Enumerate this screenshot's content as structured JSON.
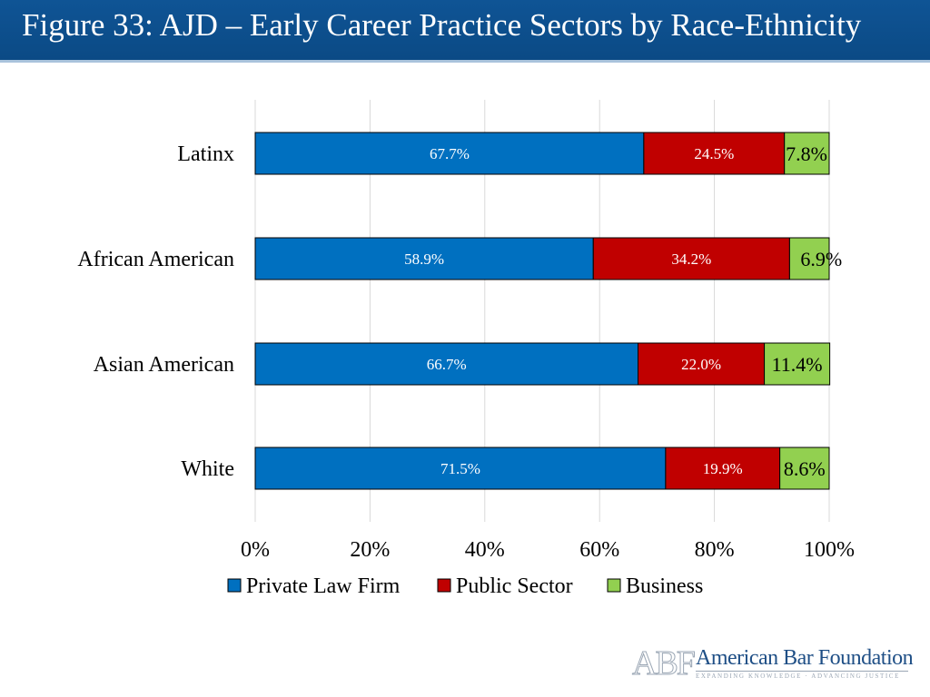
{
  "slide": {
    "title": "Figure 33: AJD – Early Career Practice Sectors by Race-Ethnicity",
    "title_bar_color": "#0f5495"
  },
  "chart_data": {
    "type": "bar",
    "orientation": "horizontal",
    "stacked": true,
    "categories": [
      "Latinx",
      "African American",
      "Asian American",
      "White"
    ],
    "series": [
      {
        "name": "Private Law Firm",
        "color": "#0070c0",
        "values": [
          67.7,
          58.9,
          66.7,
          71.5
        ]
      },
      {
        "name": "Public Sector",
        "color": "#c00000",
        "values": [
          24.5,
          34.2,
          22.0,
          19.9
        ]
      },
      {
        "name": "Business",
        "color": "#92d050",
        "values": [
          7.8,
          6.9,
          11.4,
          8.6
        ]
      }
    ],
    "data_labels": [
      [
        "67.7%",
        "24.5%",
        "7.8%"
      ],
      [
        "58.9%",
        "34.2%",
        "6.9%"
      ],
      [
        "66.7%",
        "22.0%",
        "11.4%"
      ],
      [
        "71.5%",
        "19.9%",
        "8.6%"
      ]
    ],
    "xlim": [
      0,
      100
    ],
    "xticks": [
      "0%",
      "20%",
      "40%",
      "60%",
      "80%",
      "100%"
    ],
    "grid": true,
    "legend_position": "bottom"
  },
  "footer": {
    "logo_letters": "ABF",
    "logo_name": "American Bar Foundation",
    "logo_tagline": "EXPANDING KNOWLEDGE · ADVANCING JUSTICE"
  }
}
